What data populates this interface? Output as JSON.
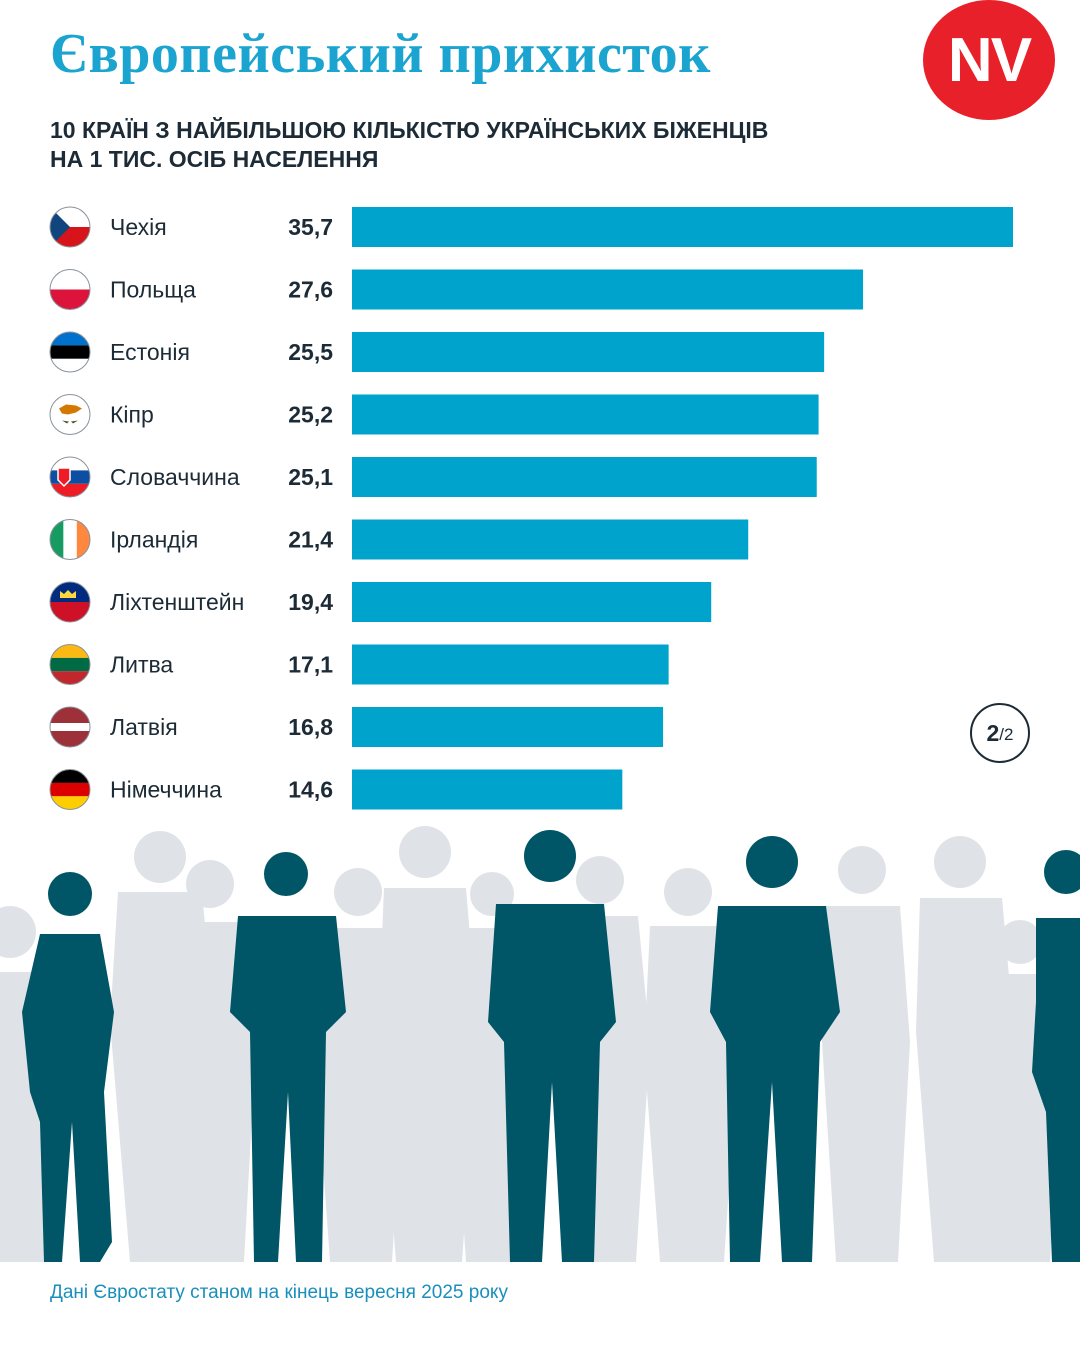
{
  "header": {
    "title": "Європейський прихисток",
    "logo": "NV",
    "subtitle_line1": "10 КРАЇН З НАЙБІЛЬШОЮ КІЛЬКІСТЮ УКРАЇНСЬКИХ БІЖЕНЦІВ",
    "subtitle_line2": "НА 1 ТИС. ОСІБ НАСЕЛЕННЯ"
  },
  "pager": {
    "current": "2",
    "total": "/2"
  },
  "footnote": "Дані Євростату станом на кінець вересня 2025 року",
  "colors": {
    "bar": "#00a3cc",
    "title": "#1aa4cf",
    "brand": "#e8202a",
    "dark_figures": "#005566",
    "light_figures": "#dfe3e8"
  },
  "chart_data": {
    "type": "bar",
    "orientation": "horizontal",
    "categories": [
      "Чехія",
      "Польща",
      "Естонія",
      "Кіпр",
      "Словаччина",
      "Ірландія",
      "Ліхтенштейн",
      "Литва",
      "Латвія",
      "Німеччина"
    ],
    "values": [
      35.7,
      27.6,
      25.5,
      25.2,
      25.1,
      21.4,
      19.4,
      17.1,
      16.8,
      14.6
    ],
    "value_labels": [
      "35,7",
      "27,6",
      "25,5",
      "25,2",
      "25,1",
      "21,4",
      "19,4",
      "17,1",
      "16,8",
      "14,6"
    ],
    "flags": [
      "czechia-flag-icon",
      "poland-flag-icon",
      "estonia-flag-icon",
      "cyprus-flag-icon",
      "slovakia-flag-icon",
      "ireland-flag-icon",
      "liechtenstein-flag-icon",
      "lithuania-flag-icon",
      "latvia-flag-icon",
      "germany-flag-icon"
    ],
    "xlim": [
      0,
      35.7
    ],
    "grid": false,
    "legend": "none"
  }
}
